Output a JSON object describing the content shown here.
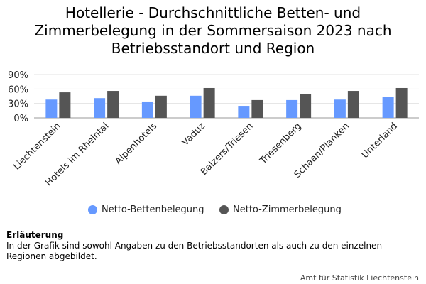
{
  "title_lines": [
    "Hotellerie - Durchschnittliche Betten- und",
    "Zimmerbelegung in der Sommersaison 2023 nach",
    "Betriebsstandort und Region"
  ],
  "chart_data": {
    "type": "bar",
    "categories": [
      "Liechtenstein",
      "Hotels im Rheintal",
      "Alpenhotels",
      "Vaduz",
      "Balzers/Triesen",
      "Triesenberg",
      "Schaan/Planken",
      "Unterland"
    ],
    "series": [
      {
        "name": "Netto-Bettenbelegung",
        "color": "#6699ff",
        "values": [
          38,
          41,
          34,
          46,
          25,
          37,
          38,
          43
        ]
      },
      {
        "name": "Netto-Zimmerbelegung",
        "color": "#555555",
        "values": [
          53,
          56,
          46,
          62,
          37,
          49,
          56,
          62
        ]
      }
    ],
    "yticks": [
      "0%",
      "30%",
      "60%",
      "90%"
    ],
    "ylim": [
      0,
      90
    ],
    "grid": true,
    "legend_position": "bottom"
  },
  "note": {
    "title": "Erläuterung",
    "text": "In der Grafik sind sowohl Angaben zu den Betriebsstandorten als auch zu den einzelnen Regionen abgebildet."
  },
  "credit": "Amt für Statistik Liechtenstein"
}
